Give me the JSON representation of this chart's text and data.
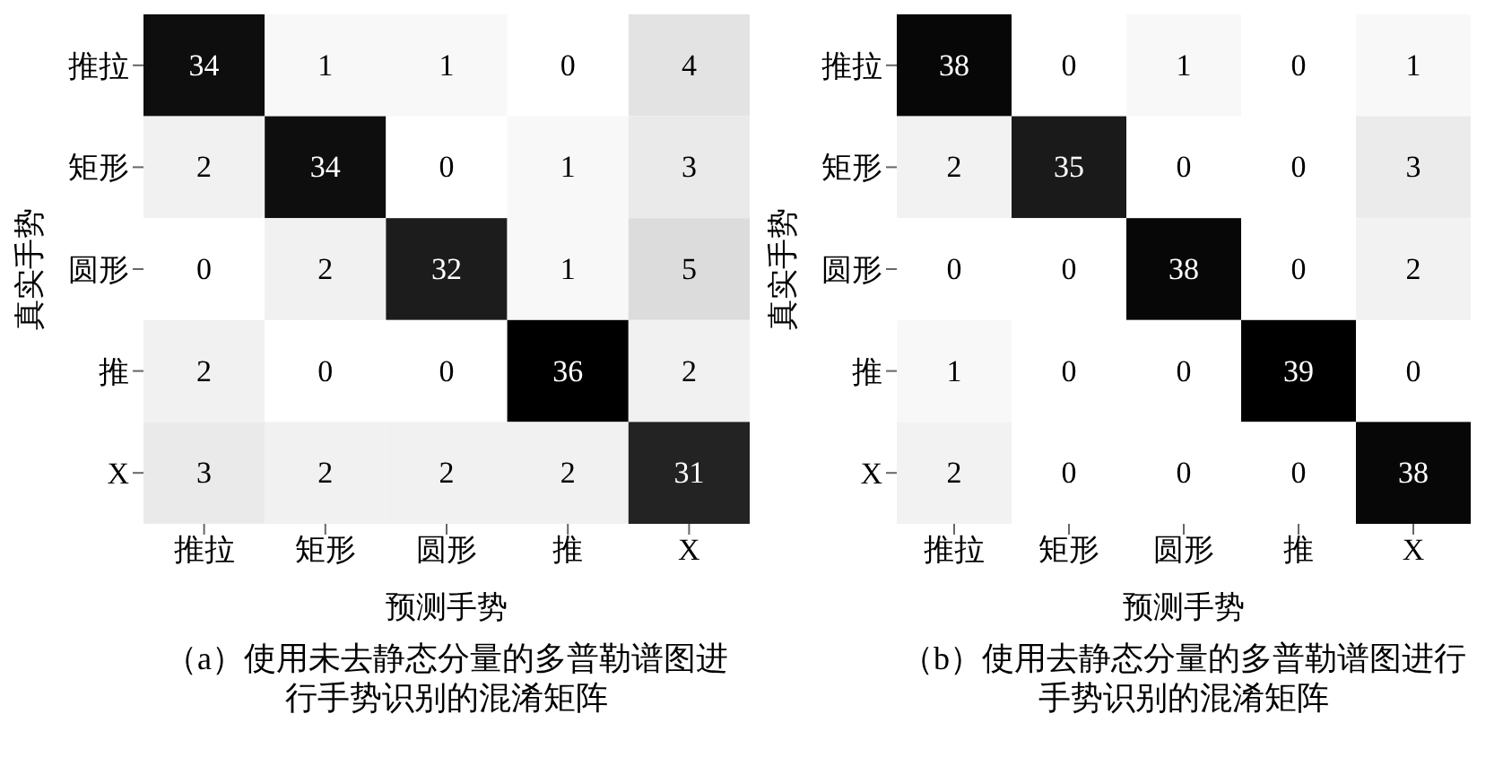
{
  "chart_data": [
    {
      "type": "heatmap",
      "title": "（a）使用未去静态分量的多普勒谱图进行手势识别的混淆矩阵",
      "xlabel": "预测手势",
      "ylabel": "真实手势",
      "categories": [
        "推拉",
        "矩形",
        "圆形",
        "推",
        "X"
      ],
      "y_categories": [
        "推拉",
        "矩形",
        "圆形",
        "推",
        "X"
      ],
      "data_labels": true,
      "cells": [
        [
          34,
          1,
          1,
          0,
          4
        ],
        [
          2,
          34,
          0,
          1,
          3
        ],
        [
          0,
          2,
          32,
          1,
          5
        ],
        [
          2,
          0,
          0,
          36,
          2
        ],
        [
          3,
          2,
          2,
          2,
          31
        ]
      ]
    },
    {
      "type": "heatmap",
      "title": "（b）使用去静态分量的多普勒谱图进行手势识别的混淆矩阵",
      "xlabel": "预测手势",
      "ylabel": "真实手势",
      "categories": [
        "推拉",
        "矩形",
        "圆形",
        "推",
        "X"
      ],
      "y_categories": [
        "推拉",
        "矩形",
        "圆形",
        "推",
        "X"
      ],
      "data_labels": true,
      "cells": [
        [
          38,
          0,
          1,
          0,
          1
        ],
        [
          2,
          35,
          0,
          0,
          3
        ],
        [
          0,
          0,
          38,
          0,
          2
        ],
        [
          1,
          0,
          0,
          39,
          0
        ],
        [
          2,
          0,
          0,
          0,
          38
        ]
      ]
    }
  ]
}
